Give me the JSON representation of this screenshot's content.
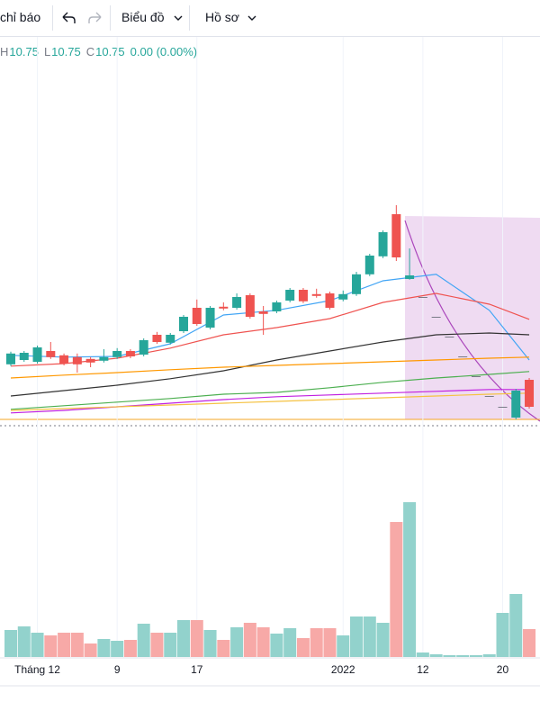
{
  "toolbar": {
    "indicators": "chỉ báo",
    "chart": "Biểu đồ",
    "profile": "Hồ sơ"
  },
  "legend": {
    "ohlc": [
      {
        "label": "H",
        "value": 10.75
      },
      {
        "label": "L",
        "value": 10.75
      },
      {
        "label": "C",
        "value": 10.75
      }
    ],
    "change": "0.00 (0.00%)"
  },
  "chart_data": {
    "type": "candlestick",
    "categories": [
      null,
      null,
      "Tháng 12",
      null,
      null,
      null,
      null,
      null,
      "9",
      null,
      null,
      null,
      null,
      null,
      "17",
      null,
      null,
      null,
      null,
      null,
      null,
      null,
      null,
      null,
      null,
      "2022",
      null,
      null,
      null,
      null,
      null,
      "12",
      null,
      null,
      null,
      null,
      null,
      "20",
      null,
      null
    ],
    "open": [
      12.28,
      12.4,
      12.35,
      12.65,
      12.53,
      12.48,
      12.43,
      12.38,
      12.48,
      12.65,
      12.55,
      13.1,
      12.88,
      13.2,
      13.85,
      13.3,
      13.88,
      13.85,
      14.2,
      13.75,
      13.75,
      14.05,
      14.35,
      14.23,
      14.25,
      14.08,
      14.23,
      14.78,
      15.28,
      16.45,
      14.65,
      14.15,
      13.6,
      13.05,
      12.5,
      11.95,
      11.4,
      11.1,
      10.8,
      11.85
    ],
    "high": [
      12.63,
      12.65,
      12.8,
      12.9,
      12.58,
      12.58,
      12.48,
      12.7,
      12.73,
      12.7,
      13.0,
      13.18,
      13.15,
      13.65,
      14.08,
      13.9,
      14.0,
      14.25,
      14.25,
      13.9,
      14.05,
      14.4,
      14.4,
      14.38,
      14.3,
      14.33,
      14.85,
      15.35,
      16.0,
      16.7,
      15.5,
      14.15,
      13.6,
      13.05,
      12.5,
      11.95,
      11.4,
      11.1,
      11.6,
      11.9
    ],
    "low": [
      12.23,
      12.35,
      12.3,
      12.43,
      12.25,
      12.05,
      12.2,
      12.33,
      12.43,
      12.45,
      12.5,
      12.85,
      12.83,
      13.15,
      13.35,
      13.25,
      13.78,
      13.8,
      13.55,
      13.1,
      13.7,
      14.0,
      13.98,
      14.13,
      13.8,
      14.03,
      14.18,
      14.73,
      15.23,
      15.15,
      14.63,
      14.15,
      13.6,
      13.05,
      12.5,
      11.95,
      11.4,
      11.1,
      10.75,
      11.05
    ],
    "close": [
      12.58,
      12.6,
      12.75,
      12.48,
      12.3,
      12.28,
      12.33,
      12.48,
      12.65,
      12.5,
      12.95,
      12.9,
      13.1,
      13.6,
      13.4,
      13.85,
      13.83,
      14.15,
      13.6,
      13.68,
      14.0,
      14.35,
      14.03,
      14.18,
      13.85,
      14.23,
      14.78,
      15.3,
      15.95,
      15.25,
      14.75,
      14.15,
      13.6,
      13.05,
      12.5,
      11.95,
      11.4,
      11.1,
      11.55,
      11.1
    ],
    "volume": [
      30,
      34,
      27,
      24,
      27,
      27,
      15,
      20,
      18,
      19,
      37,
      27,
      27,
      41,
      41,
      30,
      19,
      33,
      38,
      33,
      26,
      32,
      21,
      32,
      32,
      24,
      45,
      45,
      38,
      150,
      172,
      5,
      3,
      2,
      2,
      2,
      3,
      49,
      70,
      31
    ],
    "up_color": "#26a69a",
    "down_color": "#ef5350",
    "flat_color": "#787b86",
    "up_volume_color": "#92d2cc",
    "down_volume_color": "#f7a9a7",
    "ylim": [
      10.5,
      18
    ],
    "vlim": [
      0,
      200
    ],
    "series": [
      {
        "color": "#42a5f5",
        "x": [
          0,
          4,
          8,
          12,
          16,
          20,
          24,
          28,
          32,
          36,
          39
        ],
        "values": [
          12.53,
          12.48,
          12.5,
          12.85,
          13.65,
          13.78,
          14.05,
          14.6,
          14.78,
          13.78,
          12.4
        ]
      },
      {
        "color": "#ef5350",
        "x": [
          0,
          4,
          8,
          12,
          16,
          20,
          24,
          28,
          32,
          36,
          39
        ],
        "values": [
          12.23,
          12.3,
          12.45,
          12.73,
          13.1,
          13.3,
          13.55,
          14.0,
          14.25,
          13.95,
          13.53
        ]
      },
      {
        "color": "#333333",
        "x": [
          0,
          4,
          8,
          12,
          16,
          20,
          24,
          28,
          32,
          36,
          39
        ],
        "values": [
          11.4,
          11.55,
          11.7,
          11.88,
          12.1,
          12.4,
          12.65,
          12.9,
          13.1,
          13.15,
          13.1
        ]
      },
      {
        "color": "#ff9800",
        "x": [
          0,
          4,
          8,
          12,
          16,
          20,
          24,
          28,
          32,
          36,
          39
        ],
        "values": [
          11.9,
          11.98,
          12.05,
          12.13,
          12.2,
          12.25,
          12.3,
          12.35,
          12.4,
          12.45,
          12.48
        ]
      },
      {
        "color": "#4caf50",
        "x": [
          0,
          4,
          8,
          12,
          16,
          20,
          24,
          28,
          32,
          36,
          39
        ],
        "values": [
          11.03,
          11.13,
          11.23,
          11.33,
          11.45,
          11.5,
          11.63,
          11.78,
          11.9,
          12.0,
          12.08
        ]
      },
      {
        "color": "#c020e0",
        "x": [
          0,
          4,
          8,
          12,
          16,
          20,
          24,
          28,
          32,
          36,
          39
        ],
        "values": [
          10.93,
          11.0,
          11.1,
          11.2,
          11.3,
          11.38,
          11.43,
          11.48,
          11.53,
          11.58,
          11.58
        ]
      },
      {
        "color": "#f5c242",
        "x": [
          0,
          4,
          8,
          12,
          16,
          20,
          24,
          28,
          32,
          36,
          39
        ],
        "values": [
          11.0,
          11.05,
          11.1,
          11.15,
          11.2,
          11.25,
          11.3,
          11.35,
          11.4,
          11.45,
          11.48
        ]
      }
    ]
  }
}
